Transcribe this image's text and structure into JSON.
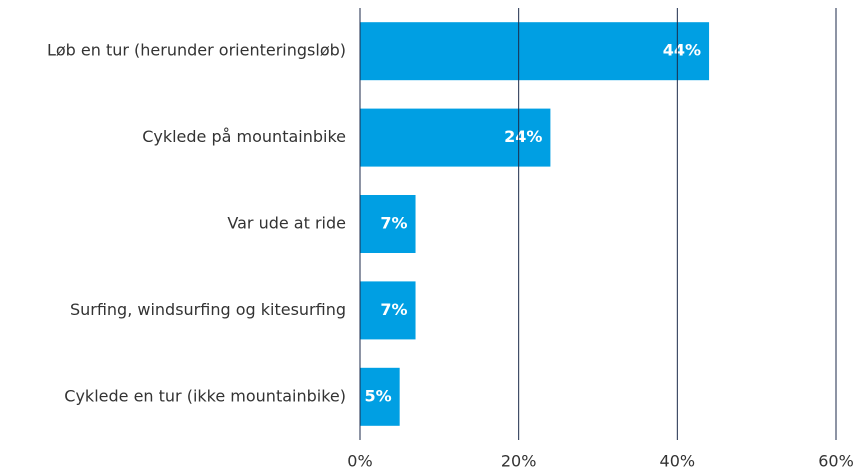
{
  "chart_data": {
    "type": "barh",
    "categories": [
      "Løb en tur (herunder orienteringsløb)",
      "Cyklede på mountainbike",
      "Var ude at ride",
      "Surfing, windsurfing og kitesurfing",
      "Cyklede en tur (ikke mountainbike)"
    ],
    "values": [
      44,
      24,
      7,
      7,
      5
    ],
    "value_labels": [
      "44%",
      "24%",
      "7%",
      "7%",
      "5%"
    ],
    "color": "#009fe3",
    "xlim": [
      0,
      60
    ],
    "xticks": [
      {
        "value": 0,
        "label": "0%"
      },
      {
        "value": 20,
        "label": "20%"
      },
      {
        "value": 40,
        "label": "40%"
      },
      {
        "value": 60,
        "label": "60%"
      }
    ],
    "grid": true
  }
}
